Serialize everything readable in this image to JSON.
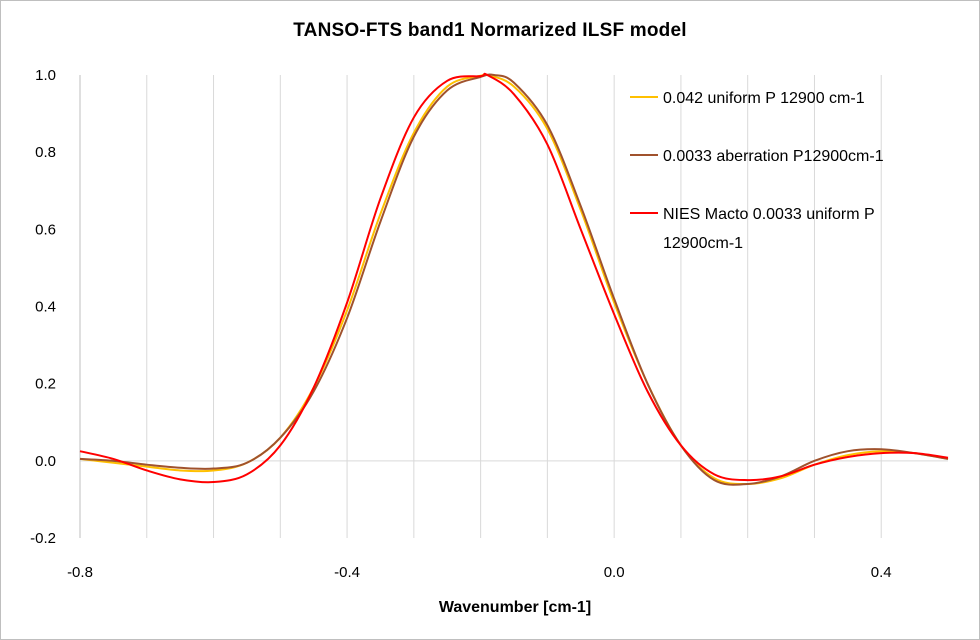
{
  "chart_data": {
    "type": "line",
    "title": "TANSO-FTS  band1 Normarized  ILSF  model",
    "xlabel": "Wavenumber [cm-1]",
    "ylabel": "",
    "xlim": [
      -0.8,
      0.5
    ],
    "ylim": [
      -0.2,
      1.0
    ],
    "x_ticks": [
      -0.8,
      -0.4,
      0.0,
      0.4
    ],
    "x_tick_labels": [
      "-0.8",
      "-0.4",
      "0.0",
      "0.4"
    ],
    "y_ticks": [
      -0.2,
      0.0,
      0.2,
      0.4,
      0.6,
      0.8,
      1.0
    ],
    "y_tick_labels": [
      "-0.2",
      "0.0",
      "0.2",
      "0.4",
      "0.6",
      "0.8",
      "1.0"
    ],
    "grid": "vertical",
    "legend_position": "top-right",
    "series": [
      {
        "name": "0.042 uniform P 12900 cm-1",
        "color": "#FFC000",
        "x": [
          -0.8,
          -0.75,
          -0.7,
          -0.65,
          -0.6,
          -0.55,
          -0.5,
          -0.45,
          -0.4,
          -0.35,
          -0.3,
          -0.25,
          -0.2,
          -0.19,
          -0.15,
          -0.1,
          -0.05,
          0.0,
          0.05,
          0.1,
          0.15,
          0.2,
          0.25,
          0.3,
          0.35,
          0.4,
          0.45,
          0.5
        ],
        "y": [
          0.005,
          -0.005,
          -0.015,
          -0.025,
          -0.025,
          -0.005,
          0.06,
          0.19,
          0.39,
          0.64,
          0.85,
          0.97,
          0.998,
          1.0,
          0.97,
          0.86,
          0.65,
          0.41,
          0.2,
          0.04,
          -0.045,
          -0.06,
          -0.045,
          -0.01,
          0.015,
          0.025,
          0.02,
          0.005
        ]
      },
      {
        "name": "0.0033 aberration P12900cm-1",
        "color": "#A0522D",
        "x": [
          -0.8,
          -0.75,
          -0.7,
          -0.65,
          -0.6,
          -0.55,
          -0.5,
          -0.45,
          -0.4,
          -0.35,
          -0.3,
          -0.25,
          -0.2,
          -0.18,
          -0.15,
          -0.1,
          -0.05,
          0.0,
          0.05,
          0.1,
          0.15,
          0.2,
          0.25,
          0.3,
          0.35,
          0.4,
          0.45,
          0.5
        ],
        "y": [
          0.005,
          0.0,
          -0.01,
          -0.018,
          -0.02,
          -0.005,
          0.06,
          0.18,
          0.37,
          0.62,
          0.84,
          0.96,
          0.995,
          1.0,
          0.98,
          0.87,
          0.66,
          0.42,
          0.2,
          0.04,
          -0.05,
          -0.06,
          -0.04,
          0.0,
          0.025,
          0.03,
          0.02,
          0.005
        ]
      },
      {
        "name": "NIES Macto 0.0033 uniform P 12900cm-1",
        "color": "#FF0000",
        "x": [
          -0.8,
          -0.75,
          -0.7,
          -0.65,
          -0.6,
          -0.55,
          -0.5,
          -0.45,
          -0.4,
          -0.35,
          -0.3,
          -0.25,
          -0.2,
          -0.19,
          -0.15,
          -0.1,
          -0.05,
          0.0,
          0.05,
          0.1,
          0.15,
          0.2,
          0.25,
          0.3,
          0.35,
          0.4,
          0.45,
          0.5
        ],
        "y": [
          0.025,
          0.005,
          -0.025,
          -0.048,
          -0.055,
          -0.035,
          0.04,
          0.19,
          0.41,
          0.68,
          0.89,
          0.985,
          0.997,
          1.0,
          0.95,
          0.82,
          0.6,
          0.38,
          0.18,
          0.04,
          -0.035,
          -0.05,
          -0.04,
          -0.01,
          0.01,
          0.02,
          0.02,
          0.008
        ]
      }
    ]
  }
}
